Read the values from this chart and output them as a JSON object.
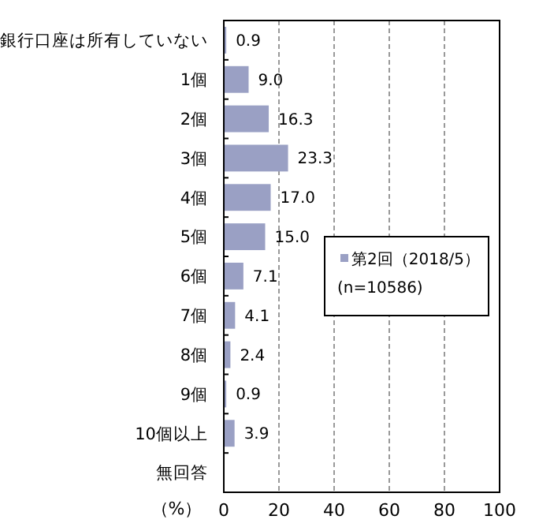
{
  "chart_data": {
    "type": "bar",
    "orientation": "horizontal",
    "categories": [
      "銀行口座は所有していない",
      "1個",
      "2個",
      "3個",
      "4個",
      "5個",
      "6個",
      "7個",
      "8個",
      "9個",
      "10個以上",
      "無回答"
    ],
    "series": [
      {
        "name": "第2回（2018/5）",
        "color": "#9aa0c4",
        "values": [
          0.9,
          9.0,
          16.3,
          23.3,
          17.0,
          15.0,
          7.1,
          4.1,
          2.4,
          0.9,
          3.9,
          null
        ],
        "value_labels": [
          "0.9",
          "9.0",
          "16.3",
          "23.3",
          "17.0",
          "15.0",
          "7.1",
          "4.1",
          "2.4",
          "0.9",
          "3.9",
          null
        ]
      }
    ],
    "xlabel": "（%）",
    "xlim": [
      0,
      100
    ],
    "xticks": [
      0,
      20,
      40,
      60,
      80,
      100
    ],
    "grid": "x",
    "legend": "right",
    "annotations": [
      "(n=10586)"
    ]
  }
}
